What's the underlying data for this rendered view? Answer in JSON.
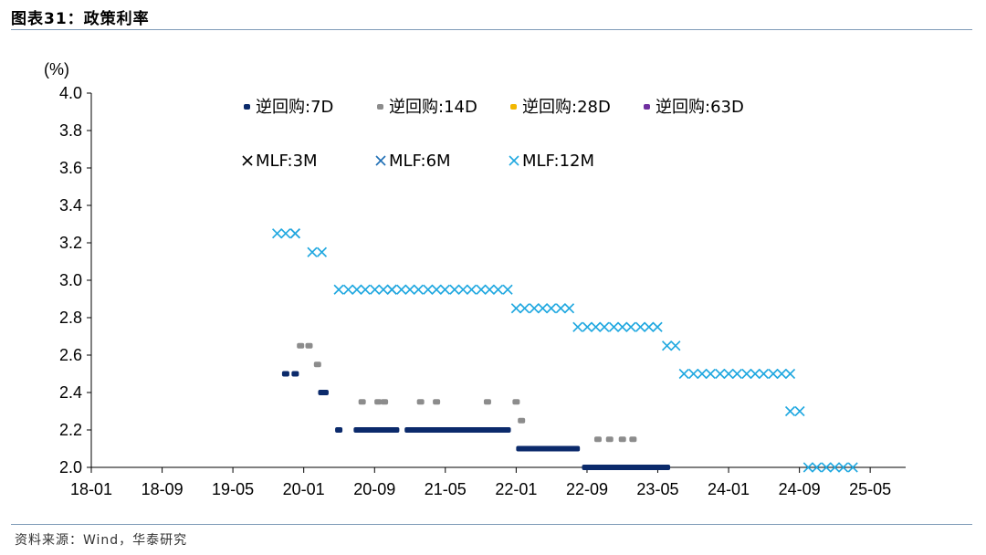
{
  "header": {
    "title": "图表31：政策利率"
  },
  "source": {
    "text": "资料来源：Wind，华泰研究"
  },
  "colors": {
    "rr7d": "#0b2a6b",
    "rr14d": "#8c8c8c",
    "rr28d": "#f2b700",
    "rr63d": "#7030a0",
    "mlf3m": "#000000",
    "mlf6m": "#1f6fb5",
    "mlf12m": "#20a8e0"
  },
  "chart_data": {
    "type": "scatter",
    "title": "",
    "ylabel": "(%)",
    "xlabel": "",
    "ylim": [
      2.0,
      4.0
    ],
    "yticks": [
      "2.0",
      "2.2",
      "2.4",
      "2.6",
      "2.8",
      "3.0",
      "3.2",
      "3.4",
      "3.6",
      "3.8",
      "4.0"
    ],
    "xlim": [
      2018.0,
      2025.667
    ],
    "xticks": [
      {
        "label": "18-01",
        "x": 2018.0
      },
      {
        "label": "18-09",
        "x": 2018.667
      },
      {
        "label": "19-05",
        "x": 2019.333
      },
      {
        "label": "20-01",
        "x": 2020.0
      },
      {
        "label": "20-09",
        "x": 2020.667
      },
      {
        "label": "21-05",
        "x": 2021.333
      },
      {
        "label": "22-01",
        "x": 2022.0
      },
      {
        "label": "22-09",
        "x": 2022.667
      },
      {
        "label": "23-05",
        "x": 2023.333
      },
      {
        "label": "24-01",
        "x": 2024.0
      },
      {
        "label": "24-09",
        "x": 2024.667
      },
      {
        "label": "25-05",
        "x": 2025.333
      }
    ],
    "legend": [
      {
        "key": "rr7d",
        "label": "逆回购:7D",
        "marker": "dash"
      },
      {
        "key": "rr14d",
        "label": "逆回购:14D",
        "marker": "dash"
      },
      {
        "key": "rr28d",
        "label": "逆回购:28D",
        "marker": "dash"
      },
      {
        "key": "rr63d",
        "label": "逆回购:63D",
        "marker": "dash"
      },
      {
        "key": "mlf3m",
        "label": "MLF:3M",
        "marker": "x"
      },
      {
        "key": "mlf6m",
        "label": "MLF:6M",
        "marker": "x"
      },
      {
        "key": "mlf12m",
        "label": "MLF:12M",
        "marker": "x"
      }
    ],
    "series": [
      {
        "key": "rr7d",
        "name": "逆回购:7D",
        "marker": "dash",
        "color": "#0b2a6b",
        "points": [
          [
            2019.83,
            2.5
          ],
          [
            2019.92,
            2.5
          ],
          [
            2020.17,
            2.4
          ],
          [
            2020.2,
            2.4
          ],
          [
            2020.33,
            2.2
          ]
        ],
        "ranges": [
          [
            2020.47,
            2020.9,
            2.2
          ],
          [
            2020.95,
            2021.95,
            2.2
          ],
          [
            2022.0,
            2022.6,
            2.1
          ],
          [
            2022.62,
            2023.45,
            2.0
          ]
        ]
      },
      {
        "key": "rr14d",
        "name": "逆回购:14D",
        "marker": "dash",
        "color": "#8c8c8c",
        "points": [
          [
            2019.97,
            2.65
          ],
          [
            2020.05,
            2.65
          ],
          [
            2020.13,
            2.55
          ],
          [
            2020.55,
            2.35
          ],
          [
            2020.7,
            2.35
          ],
          [
            2020.76,
            2.35
          ],
          [
            2021.1,
            2.35
          ],
          [
            2021.25,
            2.35
          ],
          [
            2021.73,
            2.35
          ],
          [
            2022.0,
            2.35
          ],
          [
            2022.05,
            2.25
          ],
          [
            2022.77,
            2.15
          ],
          [
            2022.88,
            2.15
          ],
          [
            2023.0,
            2.15
          ],
          [
            2023.1,
            2.15
          ]
        ],
        "ranges": []
      },
      {
        "key": "rr28d",
        "name": "逆回购:28D",
        "marker": "dash",
        "color": "#f2b700",
        "points": [],
        "ranges": []
      },
      {
        "key": "rr63d",
        "name": "逆回购:63D",
        "marker": "dash",
        "color": "#7030a0",
        "points": [],
        "ranges": []
      },
      {
        "key": "mlf3m",
        "name": "MLF:3M",
        "marker": "x",
        "color": "#000000",
        "points": [],
        "ranges": []
      },
      {
        "key": "mlf6m",
        "name": "MLF:6M",
        "marker": "x",
        "color": "#1f6fb5",
        "points": [
          [
            2019.92,
            3.25
          ],
          [
            2020.83,
            2.95
          ]
        ],
        "ranges": []
      },
      {
        "key": "mlf12m",
        "name": "MLF:12M",
        "marker": "x",
        "color": "#20a8e0",
        "points": [
          [
            2019.75,
            3.25
          ],
          [
            2019.83,
            3.25
          ],
          [
            2019.92,
            3.25
          ],
          [
            2020.08,
            3.15
          ],
          [
            2020.17,
            3.15
          ],
          [
            2020.33,
            2.95
          ],
          [
            2020.42,
            2.95
          ],
          [
            2020.5,
            2.95
          ],
          [
            2020.58,
            2.95
          ],
          [
            2020.67,
            2.95
          ],
          [
            2020.75,
            2.95
          ],
          [
            2020.83,
            2.95
          ],
          [
            2020.92,
            2.95
          ],
          [
            2021.0,
            2.95
          ],
          [
            2021.08,
            2.95
          ],
          [
            2021.17,
            2.95
          ],
          [
            2021.25,
            2.95
          ],
          [
            2021.33,
            2.95
          ],
          [
            2021.42,
            2.95
          ],
          [
            2021.5,
            2.95
          ],
          [
            2021.58,
            2.95
          ],
          [
            2021.67,
            2.95
          ],
          [
            2021.75,
            2.95
          ],
          [
            2021.83,
            2.95
          ],
          [
            2021.92,
            2.95
          ],
          [
            2022.0,
            2.85
          ],
          [
            2022.08,
            2.85
          ],
          [
            2022.17,
            2.85
          ],
          [
            2022.25,
            2.85
          ],
          [
            2022.33,
            2.85
          ],
          [
            2022.42,
            2.85
          ],
          [
            2022.5,
            2.85
          ],
          [
            2022.58,
            2.75
          ],
          [
            2022.67,
            2.75
          ],
          [
            2022.75,
            2.75
          ],
          [
            2022.83,
            2.75
          ],
          [
            2022.92,
            2.75
          ],
          [
            2023.0,
            2.75
          ],
          [
            2023.08,
            2.75
          ],
          [
            2023.17,
            2.75
          ],
          [
            2023.25,
            2.75
          ],
          [
            2023.33,
            2.75
          ],
          [
            2023.42,
            2.65
          ],
          [
            2023.5,
            2.65
          ],
          [
            2023.58,
            2.5
          ],
          [
            2023.67,
            2.5
          ],
          [
            2023.75,
            2.5
          ],
          [
            2023.83,
            2.5
          ],
          [
            2023.92,
            2.5
          ],
          [
            2024.0,
            2.5
          ],
          [
            2024.08,
            2.5
          ],
          [
            2024.17,
            2.5
          ],
          [
            2024.25,
            2.5
          ],
          [
            2024.33,
            2.5
          ],
          [
            2024.42,
            2.5
          ],
          [
            2024.5,
            2.5
          ],
          [
            2024.58,
            2.5
          ],
          [
            2024.58,
            2.3
          ],
          [
            2024.67,
            2.3
          ],
          [
            2024.75,
            2.0
          ],
          [
            2024.83,
            2.0
          ],
          [
            2024.92,
            2.0
          ],
          [
            2025.0,
            2.0
          ],
          [
            2025.08,
            2.0
          ],
          [
            2025.17,
            2.0
          ]
        ],
        "ranges": []
      }
    ]
  }
}
